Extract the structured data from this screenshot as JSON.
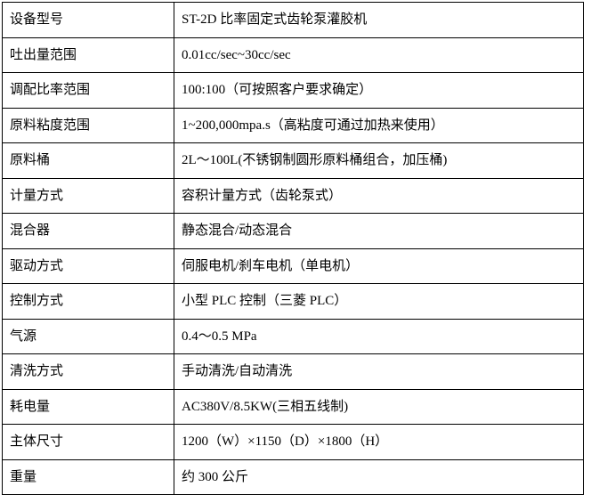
{
  "page": {
    "background": "#ffffff"
  },
  "table": {
    "title": "equipment-specification-table",
    "border_color": "#000000",
    "text_color": "#000000",
    "rows": [
      {
        "label": "设备型号",
        "value": "ST-2D 比率固定式齿轮泵灌胶机"
      },
      {
        "label": "吐出量范围",
        "value": "0.01cc/sec~30cc/sec"
      },
      {
        "label": "调配比率范围",
        "value": "100:100（可按照客户要求确定）"
      },
      {
        "label": "原料粘度范围",
        "value": "1~200,000mpa.s（高粘度可通过加热来使用）"
      },
      {
        "label": "原料桶",
        "value": "2L～100L(不锈钢制圆形原料桶组合，加压桶)"
      },
      {
        "label": "计量方式",
        "value": "容积计量方式（齿轮泵式）"
      },
      {
        "label": "混合器",
        "value": "静态混合/动态混合"
      },
      {
        "label": "驱动方式",
        "value": "伺服电机/刹车电机（单电机）"
      },
      {
        "label": "控制方式",
        "value": "小型 PLC 控制（三菱 PLC）"
      },
      {
        "label": "气源",
        "value": "0.4～0.5 MPa"
      },
      {
        "label": "清洗方式",
        "value": "手动清洗/自动清洗"
      },
      {
        "label": "耗电量",
        "value": "AC380V/8.5KW(三相五线制)"
      },
      {
        "label": "主体尺寸",
        "value": "1200（W）×1150（D）×1800（H）"
      },
      {
        "label": "重量",
        "value": "约 300 公斤"
      }
    ]
  }
}
